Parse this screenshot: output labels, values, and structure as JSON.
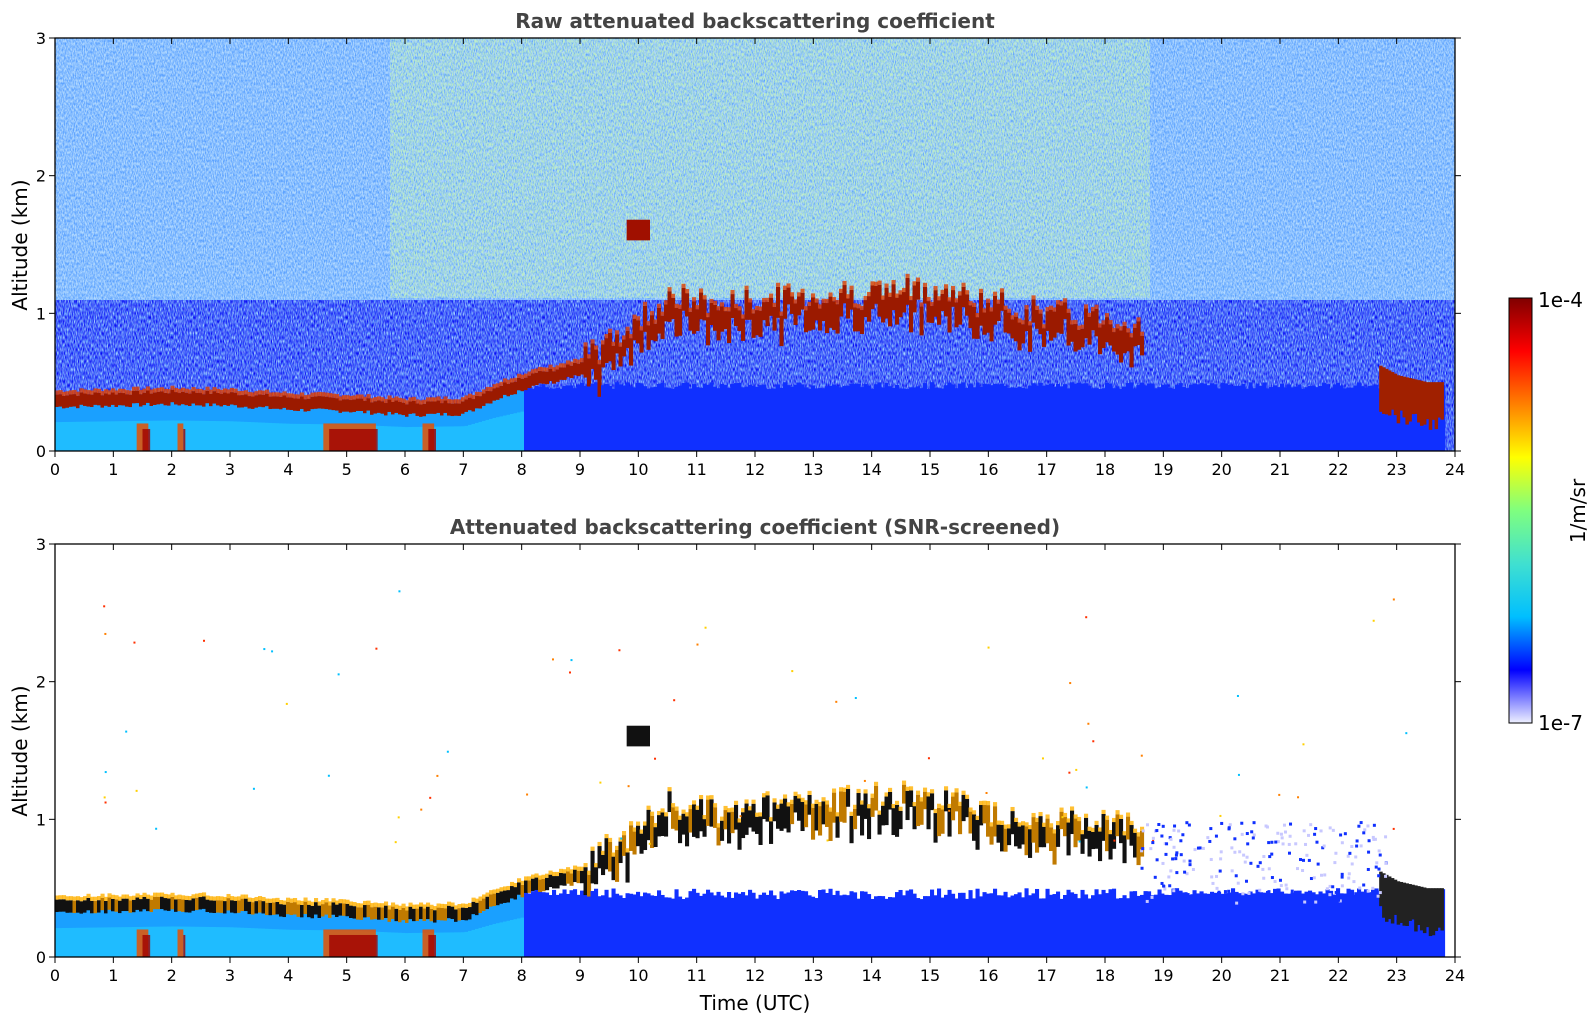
{
  "chart_data": [
    {
      "type": "heatmap",
      "title": "Raw attenuated backscattering coefficient",
      "xlabel": "",
      "ylabel": "Altitude (km)",
      "xlim": [
        0,
        24
      ],
      "ylim": [
        0,
        3
      ],
      "xticks": [
        "0",
        "1",
        "2",
        "3",
        "4",
        "5",
        "6",
        "7",
        "8",
        "9",
        "10",
        "11",
        "12",
        "13",
        "14",
        "15",
        "16",
        "17",
        "18",
        "19",
        "20",
        "21",
        "22",
        "23",
        "24"
      ],
      "yticks": [
        "0",
        "1",
        "2",
        "3"
      ],
      "screened": false,
      "layer_top_km": [
        [
          0,
          0.35
        ],
        [
          1,
          0.36
        ],
        [
          2,
          0.37
        ],
        [
          3,
          0.36
        ],
        [
          4,
          0.33
        ],
        [
          5,
          0.32
        ],
        [
          6,
          0.29
        ],
        [
          7,
          0.3
        ],
        [
          7.5,
          0.4
        ],
        [
          8,
          0.48
        ],
        [
          9,
          0.58
        ],
        [
          9.5,
          0.72
        ],
        [
          10,
          0.88
        ],
        [
          10.5,
          1.05
        ],
        [
          11,
          1.0
        ],
        [
          11.5,
          0.98
        ],
        [
          12,
          1.02
        ],
        [
          13,
          1.05
        ],
        [
          14,
          1.08
        ],
        [
          15,
          1.1
        ],
        [
          16,
          1.0
        ],
        [
          17,
          0.92
        ],
        [
          18,
          0.9
        ],
        [
          18.5,
          0.85
        ]
      ],
      "late_layer_km": [
        [
          22.7,
          0.62
        ],
        [
          23,
          0.55
        ],
        [
          23.5,
          0.5
        ],
        [
          23.8,
          0.5
        ]
      ],
      "elevated_patch": {
        "x": 9.9,
        "alt_km": 1.6
      }
    },
    {
      "type": "heatmap",
      "title": "Attenuated backscattering coefficient (SNR-screened)",
      "xlabel": "Time (UTC)",
      "ylabel": "Altitude (km)",
      "xlim": [
        0,
        24
      ],
      "ylim": [
        0,
        3
      ],
      "xticks": [
        "0",
        "1",
        "2",
        "3",
        "4",
        "5",
        "6",
        "7",
        "8",
        "9",
        "10",
        "11",
        "12",
        "13",
        "14",
        "15",
        "16",
        "17",
        "18",
        "19",
        "20",
        "21",
        "22",
        "23",
        "24"
      ],
      "yticks": [
        "0",
        "1",
        "2",
        "3"
      ],
      "screened": true,
      "layer_top_km": [
        [
          0,
          0.35
        ],
        [
          1,
          0.36
        ],
        [
          2,
          0.37
        ],
        [
          3,
          0.36
        ],
        [
          4,
          0.33
        ],
        [
          5,
          0.32
        ],
        [
          6,
          0.29
        ],
        [
          7,
          0.3
        ],
        [
          7.5,
          0.4
        ],
        [
          8,
          0.48
        ],
        [
          9,
          0.58
        ],
        [
          9.5,
          0.72
        ],
        [
          10,
          0.88
        ],
        [
          10.5,
          1.05
        ],
        [
          11,
          1.0
        ],
        [
          11.5,
          0.98
        ],
        [
          12,
          1.02
        ],
        [
          13,
          1.05
        ],
        [
          14,
          1.08
        ],
        [
          15,
          1.1
        ],
        [
          16,
          1.0
        ],
        [
          17,
          0.92
        ],
        [
          18,
          0.9
        ],
        [
          18.5,
          0.85
        ]
      ],
      "late_layer_km": [
        [
          22.7,
          0.62
        ],
        [
          23,
          0.55
        ],
        [
          23.5,
          0.5
        ],
        [
          23.8,
          0.5
        ]
      ],
      "elevated_patch": {
        "x": 9.9,
        "alt_km": 1.6
      }
    }
  ],
  "colorbar": {
    "label": "1/m/sr",
    "max_label": "1e-4",
    "min_label": "1e-7",
    "colormap": "jet",
    "colors": [
      "#eef0ff",
      "#0000ff",
      "#00bfff",
      "#40e0d0",
      "#7fff7f",
      "#ffff00",
      "#ff8000",
      "#ff0000",
      "#800000"
    ]
  }
}
